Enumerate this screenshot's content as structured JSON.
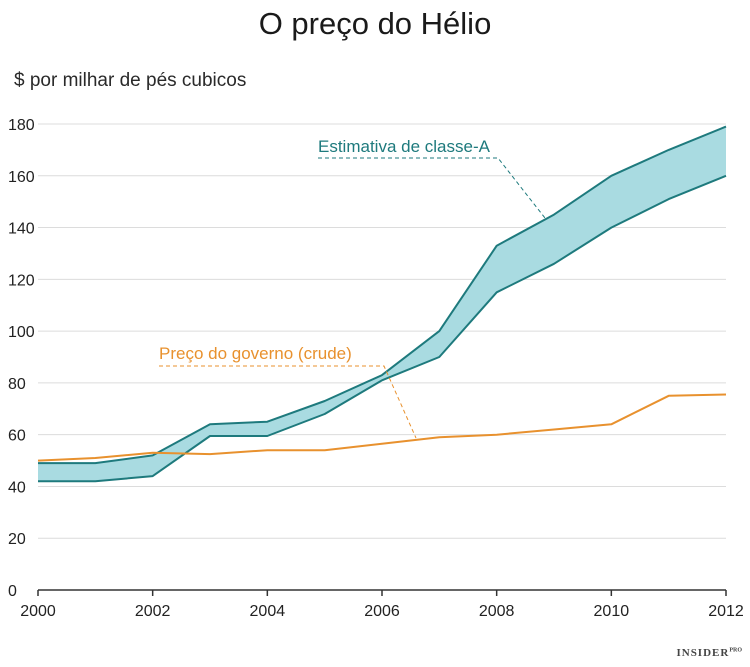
{
  "title": "O preço do Hélio",
  "unit_label": "$ por milhar de pés cubicos",
  "brand": {
    "name": "INSIDER",
    "suffix": "PRO"
  },
  "colors": {
    "teal": "#1e7a7d",
    "band_fill": "#a9dbe1",
    "orange": "#e8912e",
    "grid": "#dcdcdc",
    "axis": "#333333"
  },
  "chart_data": {
    "type": "line",
    "title": "O preço do Hélio",
    "ylabel": "$ por milhar de pés cubicos",
    "xlabel": "",
    "xlim": [
      2000,
      2012
    ],
    "ylim": [
      0,
      180
    ],
    "x_ticks": [
      2000,
      2002,
      2004,
      2006,
      2008,
      2010,
      2012
    ],
    "y_ticks": [
      0,
      20,
      40,
      60,
      80,
      100,
      120,
      140,
      160,
      180
    ],
    "grid": "horizontal",
    "series": [
      {
        "name": "Estimativa de classe-A",
        "style": "band",
        "x": [
          2000,
          2001,
          2002,
          2003,
          2004,
          2005,
          2006,
          2007,
          2008,
          2009,
          2010,
          2011,
          2012
        ],
        "upper": [
          49,
          49,
          52,
          64,
          65,
          73,
          83,
          100,
          133,
          145,
          160,
          170,
          179
        ],
        "lower": [
          42,
          42,
          44,
          59.5,
          59.5,
          68,
          81,
          90,
          115,
          126,
          140,
          151,
          160
        ]
      },
      {
        "name": "Preço do governo (crude)",
        "style": "line",
        "x": [
          2000,
          2001,
          2002,
          2003,
          2004,
          2005,
          2006,
          2007,
          2008,
          2009,
          2010,
          2011,
          2012
        ],
        "values": [
          50,
          51,
          53,
          52.5,
          54,
          54,
          56.5,
          59,
          60,
          62,
          64,
          75,
          75.5
        ]
      }
    ]
  }
}
